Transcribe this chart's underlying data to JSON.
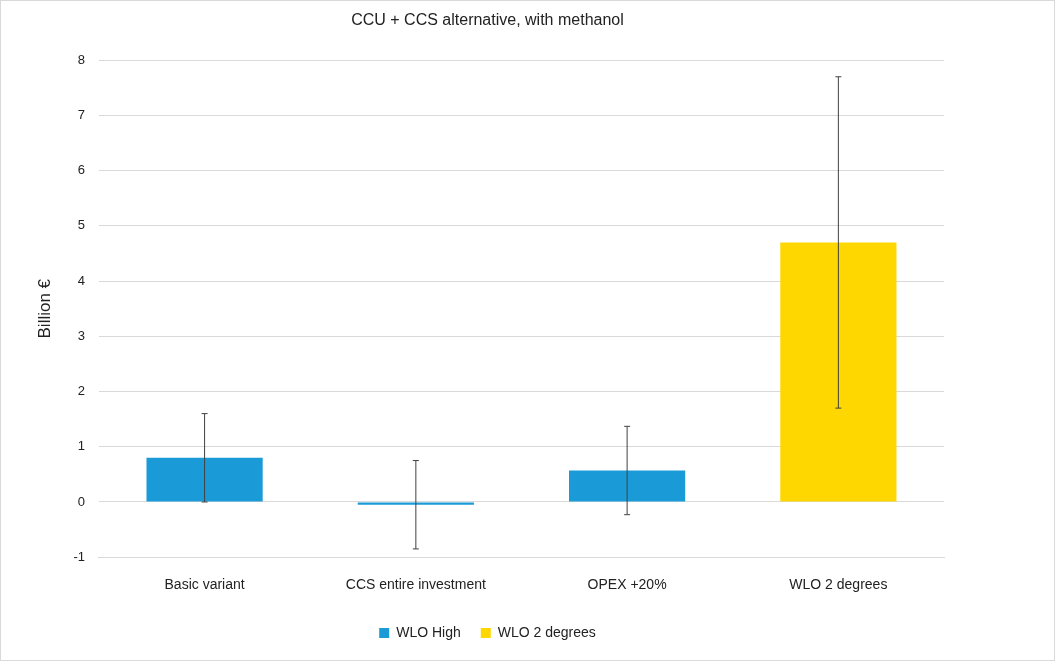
{
  "chart_data": {
    "type": "bar",
    "title": "CCU + CCS alternative, with methanol",
    "ylabel": "Billion €",
    "categories": [
      "Basic variant",
      "CCS entire investment",
      "OPEX +20%",
      "WLO 2 degrees"
    ],
    "series": [
      {
        "name": "WLO High",
        "color": "#1a9bd7",
        "values": [
          0.8,
          -0.05,
          0.57,
          null
        ],
        "errors": [
          0.8,
          0.8,
          0.8,
          null
        ]
      },
      {
        "name": "WLO 2 degrees",
        "color": "#ffd700",
        "values": [
          null,
          null,
          null,
          4.7
        ],
        "errors": [
          null,
          null,
          null,
          3
        ]
      }
    ],
    "ylim": [
      -1,
      8
    ],
    "yticks": [
      -1,
      0,
      1,
      2,
      3,
      4,
      5,
      6,
      7,
      8
    ],
    "grid": "y",
    "legend": "bottom"
  }
}
